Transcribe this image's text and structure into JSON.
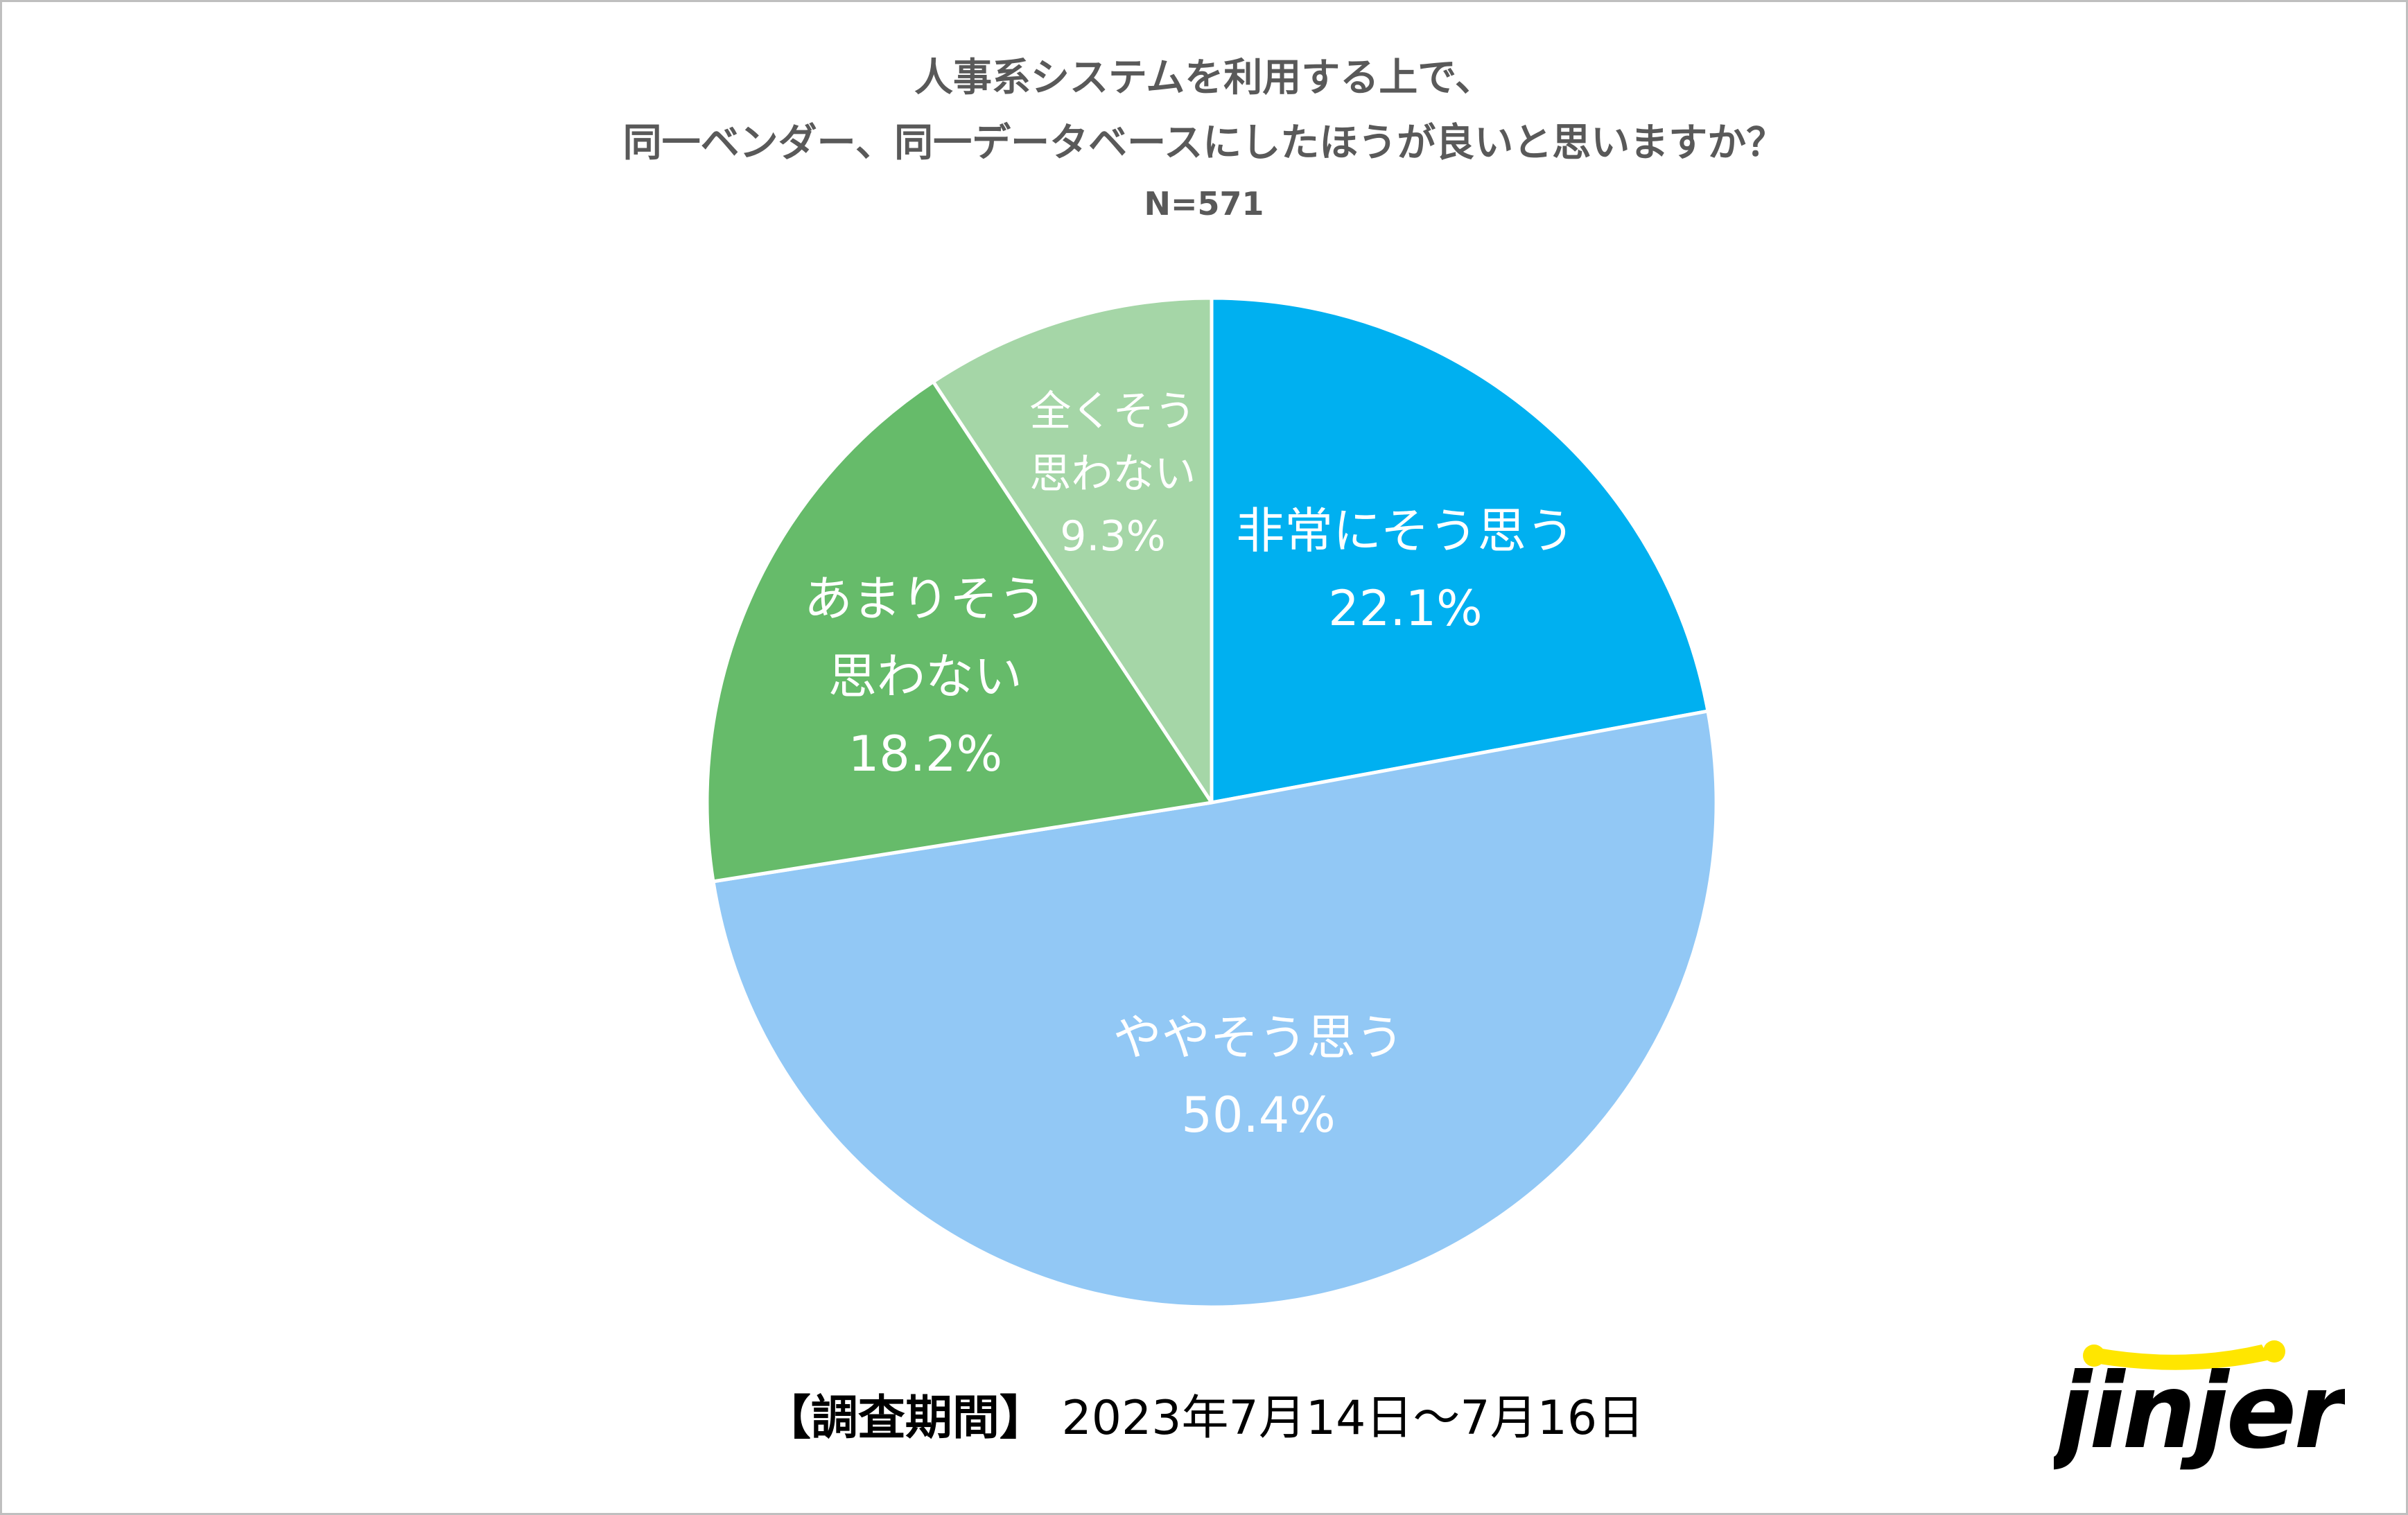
{
  "title": {
    "line1": "人事系システムを利用する上で、",
    "line2": "同一ベンダー、同一データベースにしたほうが良いと思いますか？",
    "n": "N=571"
  },
  "chart_data": {
    "type": "pie",
    "start_angle_deg": 0,
    "direction": "clockwise",
    "slices": [
      {
        "label": [
          "非常にそう思う"
        ],
        "value": 22.1,
        "value_label": "22.1%",
        "color": "#00B0F0"
      },
      {
        "label": [
          "ややそう思う"
        ],
        "value": 50.4,
        "value_label": "50.4%",
        "color": "#92C8F5"
      },
      {
        "label": [
          "あまりそう",
          "思わない"
        ],
        "value": 18.2,
        "value_label": "18.2%",
        "color": "#66BB6A"
      },
      {
        "label": [
          "全くそう",
          "思わない"
        ],
        "value": 9.3,
        "value_label": "9.3%",
        "color": "#A5D6A7"
      }
    ]
  },
  "footer": {
    "period_label": "【調査期間】",
    "period_value": "2023年7月14日～7月16日"
  },
  "logo": {
    "text": "jinjer",
    "accent_color": "#FFE600",
    "text_color": "#000000"
  }
}
